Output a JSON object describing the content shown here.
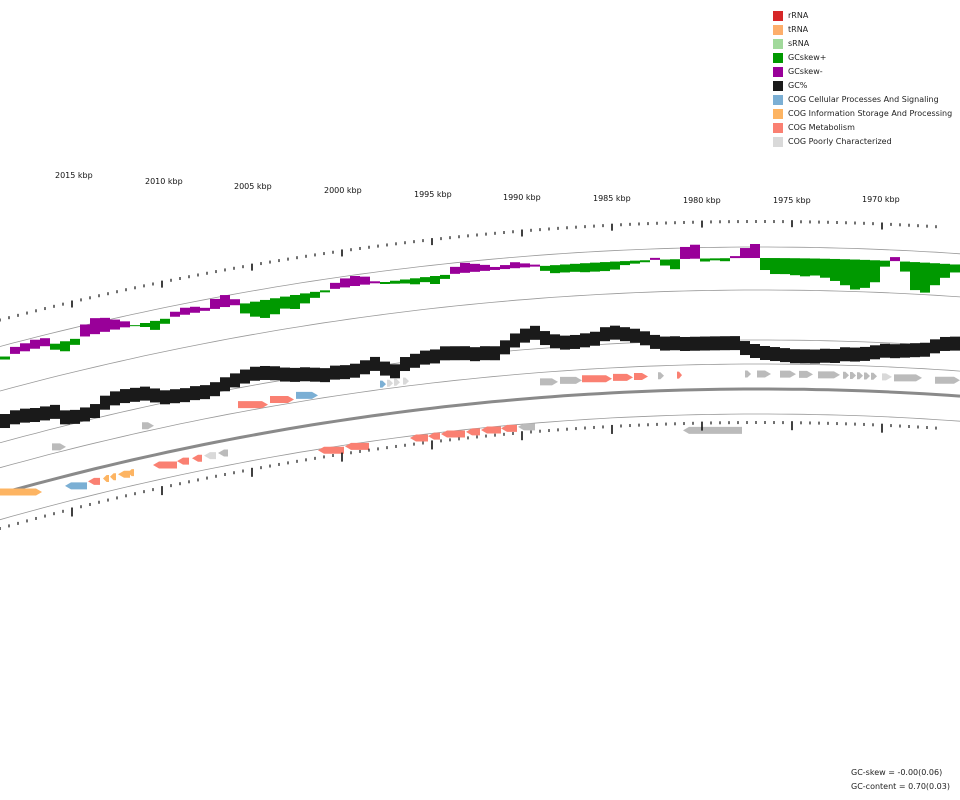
{
  "legend": [
    {
      "label": "rRNA",
      "color": "#d62728"
    },
    {
      "label": "tRNA",
      "color": "#fdae6b"
    },
    {
      "label": "sRNA",
      "color": "#a1d99b"
    },
    {
      "label": "GCskew+",
      "color": "#009900"
    },
    {
      "label": "GCskew-",
      "color": "#990099"
    },
    {
      "label": "GC%",
      "color": "#1a1a1a"
    },
    {
      "label": "COG Cellular Processes And Signaling",
      "color": "#7bafd4"
    },
    {
      "label": "COG Information Storage And Processing",
      "color": "#fdb462"
    },
    {
      "label": "COG Metabolism",
      "color": "#fa8072"
    },
    {
      "label": "COG Poorly Characterized",
      "color": "#d9d9d9"
    }
  ],
  "ticks": {
    "unit": "kbp",
    "labels": [
      "2015 kbp",
      "2010 kbp",
      "2005 kbp",
      "2000 kbp",
      "1995 kbp",
      "1990 kbp",
      "1985 kbp",
      "1980 kbp",
      "1975 kbp",
      "1970 kbp"
    ]
  },
  "stats": {
    "gc_skew": "GC-skew = -0.00(0.06)",
    "gc_content": "GC-content = 0.70(0.03)"
  },
  "colors": {
    "skew_pos": "#009900",
    "skew_neg": "#990099",
    "gc": "#1a1a1a",
    "cog_cell": "#7bafd4",
    "cog_info": "#fdb462",
    "cog_metab": "#fa8072",
    "cog_poor": "#d9d9d9",
    "gene_gray": "#bbbbbb",
    "backbone": "#8a8a8a"
  }
}
